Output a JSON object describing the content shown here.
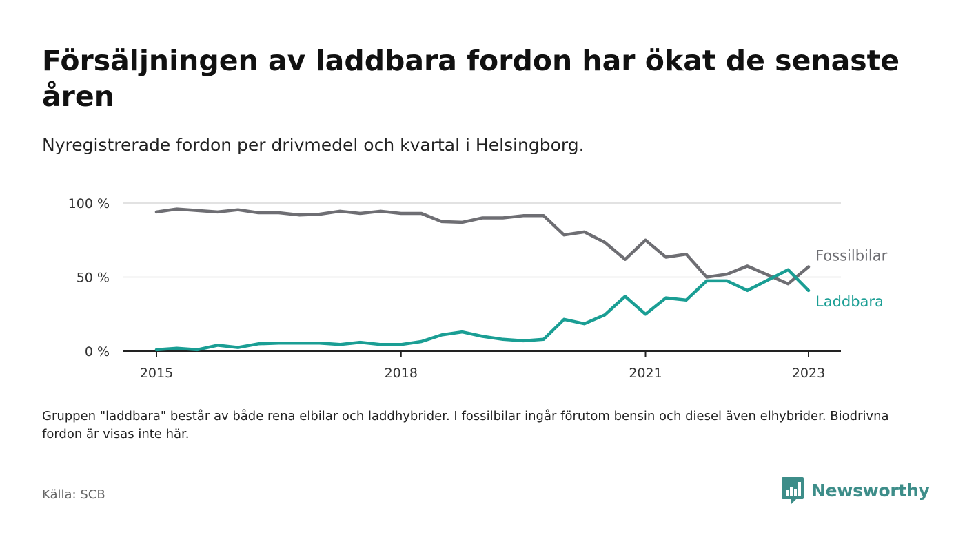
{
  "title": "Försäljningen av laddbara fordon har ökat de senaste åren",
  "subtitle": "Nyregistrerade fordon per drivmedel och kvartal i Helsingborg.",
  "note": "Gruppen \"laddbara\" består av både rena elbilar och laddhybrider. I fossilbilar ingår förutom bensin och diesel även elhybrider. Biodrivna fordon är visas inte här.",
  "source": "Källa: SCB",
  "brand": {
    "name": "Newsworthy",
    "icon": "bar-chart-speech-bubble-icon",
    "color": "#3d8d89"
  },
  "chart_data": {
    "type": "line",
    "x_start": "2015Q1",
    "x": [
      "2015Q1",
      "2015Q2",
      "2015Q3",
      "2015Q4",
      "2016Q1",
      "2016Q2",
      "2016Q3",
      "2016Q4",
      "2017Q1",
      "2017Q2",
      "2017Q3",
      "2017Q4",
      "2018Q1",
      "2018Q2",
      "2018Q3",
      "2018Q4",
      "2019Q1",
      "2019Q2",
      "2019Q3",
      "2019Q4",
      "2020Q1",
      "2020Q2",
      "2020Q3",
      "2020Q4",
      "2021Q1",
      "2021Q2",
      "2021Q3",
      "2021Q4",
      "2022Q1",
      "2022Q2",
      "2022Q3",
      "2022Q4",
      "2023Q1"
    ],
    "series": [
      {
        "name": "Fossilbilar",
        "color": "#6e6e73",
        "values": [
          94,
          96,
          95,
          94,
          95.5,
          93.5,
          93.5,
          92,
          92.5,
          94.5,
          93,
          94.5,
          93,
          93,
          87.5,
          87,
          90,
          90,
          91.5,
          91.5,
          78.5,
          80.5,
          73.5,
          62,
          75,
          63.5,
          65.5,
          50,
          52,
          57.5,
          51.5,
          45.5,
          57
        ]
      },
      {
        "name": "Laddbara",
        "color": "#1a9e94",
        "values": [
          1,
          2,
          1,
          4,
          2.5,
          5,
          5.5,
          5.5,
          5.5,
          4.5,
          6,
          4.5,
          4.5,
          6.5,
          11,
          13,
          10,
          8,
          7,
          8,
          21.5,
          18.5,
          24.5,
          37,
          25,
          36,
          34.5,
          47.5,
          47.5,
          41,
          48,
          55,
          41
        ]
      }
    ],
    "x_ticks": [
      "2015",
      "2018",
      "2021",
      "2023"
    ],
    "y_ticks": [
      "0 %",
      "50 %",
      "100 %"
    ],
    "ylim": [
      0,
      100
    ],
    "grid": "horizontal",
    "legend": "direct labels at line ends"
  }
}
